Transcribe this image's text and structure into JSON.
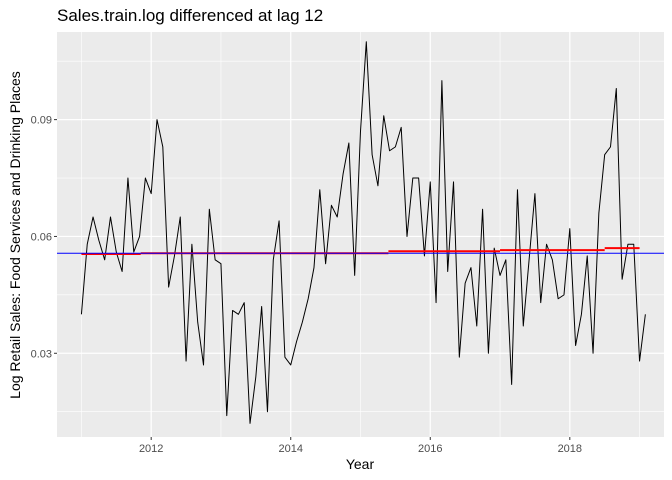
{
  "chart_data": {
    "type": "line",
    "title": "Sales.train.log differenced at lag 12",
    "xlabel": "Year",
    "ylabel": "Log Retail Sales: Food Services and Drinking Places",
    "xlim": [
      2010.65,
      2019.35
    ],
    "ylim": [
      0.0085,
      0.1125
    ],
    "x_ticks": [
      2012,
      2014,
      2016,
      2018
    ],
    "x_tick_labels": [
      "2012",
      "2014",
      "2016",
      "2018"
    ],
    "y_ticks": [
      0.03,
      0.06,
      0.09
    ],
    "y_tick_labels": [
      "0.03",
      "0.06",
      "0.09"
    ],
    "grid": true,
    "background": "#ebebeb",
    "series": [
      {
        "style": "line",
        "color": "#000000",
        "start_year": 2011,
        "step": 0.08333,
        "values": [
          0.04,
          0.058,
          0.065,
          0.059,
          0.054,
          0.065,
          0.056,
          0.051,
          0.075,
          0.056,
          0.06,
          0.075,
          0.071,
          0.09,
          0.083,
          0.047,
          0.055,
          0.065,
          0.028,
          0.058,
          0.038,
          0.027,
          0.067,
          0.054,
          0.053,
          0.014,
          0.041,
          0.04,
          0.043,
          0.012,
          0.024,
          0.042,
          0.015,
          0.054,
          0.064,
          0.029,
          0.027,
          0.033,
          0.038,
          0.044,
          0.052,
          0.072,
          0.053,
          0.068,
          0.065,
          0.076,
          0.084,
          0.05,
          0.087,
          0.11,
          0.081,
          0.073,
          0.091,
          0.082,
          0.083,
          0.088,
          0.06,
          0.075,
          0.075,
          0.055,
          0.074,
          0.043,
          0.1,
          0.051,
          0.074,
          0.029,
          0.048,
          0.052,
          0.037,
          0.067,
          0.03,
          0.057,
          0.05,
          0.054,
          0.022,
          0.072,
          0.037,
          0.054,
          0.071,
          0.043,
          0.058,
          0.054,
          0.044,
          0.045,
          0.062,
          0.032,
          0.04,
          0.055,
          0.03,
          0.066,
          0.081,
          0.083,
          0.098,
          0.049,
          0.058,
          0.058,
          0.028,
          0.04
        ]
      },
      {
        "style": "step",
        "color": "#ff0000",
        "segments": [
          [
            2011.0,
            2011.85,
            0.0555
          ],
          [
            2011.85,
            2015.4,
            0.0557
          ],
          [
            2015.4,
            2017.0,
            0.0562
          ],
          [
            2017.0,
            2018.5,
            0.0565
          ],
          [
            2018.5,
            2019.0,
            0.057
          ]
        ]
      },
      {
        "style": "hline",
        "color": "#0000ff",
        "value": 0.0557
      }
    ]
  }
}
